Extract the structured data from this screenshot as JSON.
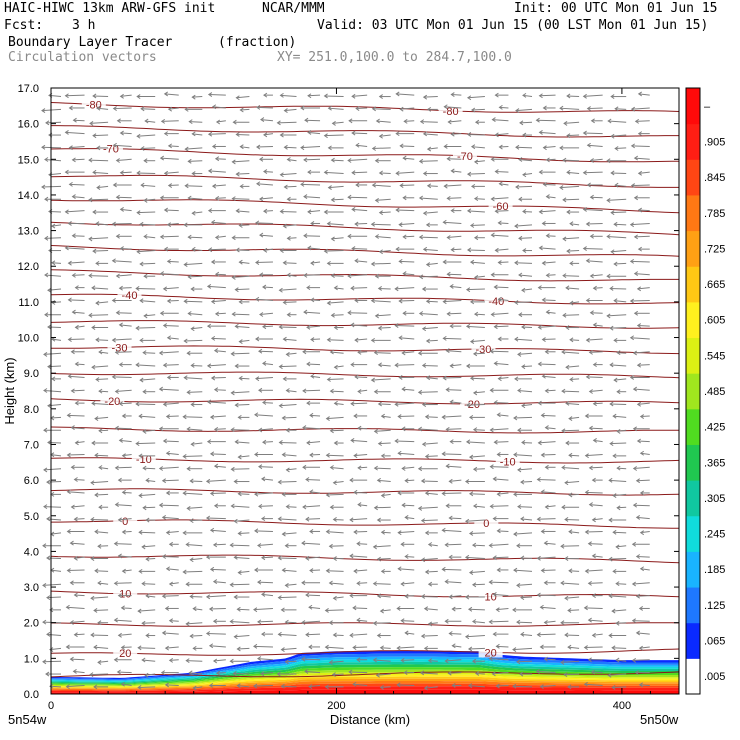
{
  "header": {
    "model": "HAIC-HIWC 13km ARW-GFS init",
    "org": "NCAR/MMM",
    "init": "Init: 00 UTC Mon 01 Jun 15",
    "fcst_label": "Fcst:",
    "fcst_value": "3 h",
    "valid": "Valid: 03 UTC Mon 01 Jun 15 (00 LST Mon 01 Jun 15)",
    "field": "Boundary Layer Tracer",
    "field_units": "(fraction)",
    "vectors": "Circulation vectors",
    "xy": "XY= 251.0,100.0 to 284.7,100.0"
  },
  "chart_data": {
    "type": "cross-section",
    "xlabel": "Distance (km)",
    "ylabel": "Height (km)",
    "xlim": [
      0,
      440
    ],
    "ylim": [
      0,
      17
    ],
    "x_ticks": [
      "0",
      "200",
      "400"
    ],
    "y_ticks": [
      "0.0",
      "1.0",
      "2.0",
      "3.0",
      "4.0",
      "5.0",
      "6.0",
      "7.0",
      "8.0",
      "9.0",
      "10.0",
      "11.0",
      "12.0",
      "13.0",
      "14.0",
      "15.0",
      "16.0",
      "17.0"
    ],
    "left_endpoint": "5n54w",
    "right_endpoint": "5n50w",
    "colorbar": {
      "labels": [
        ".005",
        ".065",
        ".125",
        ".185",
        ".245",
        ".305",
        ".365",
        ".425",
        ".485",
        ".545",
        ".605",
        ".665",
        ".725",
        ".785",
        ".845",
        ".905",
        "–"
      ],
      "colors": [
        "#ffffff",
        "#0a2aff",
        "#1e78ff",
        "#19b4ff",
        "#10dcdc",
        "#10c8a0",
        "#20c850",
        "#50dc20",
        "#a0e61e",
        "#dcf014",
        "#fff01e",
        "#ffc814",
        "#ffa014",
        "#ff7814",
        "#ff4614",
        "#ff1e14",
        "#ff0a0a"
      ]
    },
    "temperature_contours": {
      "color": "#8b1a1a",
      "levels_C": [
        25,
        20,
        15,
        10,
        5,
        0,
        -5,
        -10,
        -15,
        -20,
        -25,
        -30,
        -35,
        -40,
        -45,
        -50,
        -55,
        -60,
        -65,
        -70,
        -75,
        -80
      ],
      "heights_left_km": [
        0.48,
        1.1,
        1.95,
        2.88,
        3.9,
        4.87,
        5.72,
        6.58,
        7.44,
        8.26,
        9.02,
        9.75,
        10.45,
        11.18,
        11.85,
        12.55,
        13.25,
        13.9,
        14.55,
        15.28,
        15.9,
        16.55
      ],
      "heights_right_km": [
        0.62,
        1.22,
        1.95,
        2.72,
        3.72,
        4.7,
        5.62,
        6.52,
        7.35,
        8.15,
        8.9,
        9.6,
        10.3,
        10.96,
        11.58,
        12.25,
        12.9,
        13.55,
        14.25,
        14.94,
        15.62,
        16.3
      ],
      "labels": [
        {
          "text": "20",
          "x_km": 52,
          "level": 20
        },
        {
          "text": "10",
          "x_km": 52,
          "level": 10
        },
        {
          "text": "0",
          "x_km": 52,
          "level": 0
        },
        {
          "text": "-10",
          "x_km": 65,
          "level": -10
        },
        {
          "text": "-20",
          "x_km": 43,
          "level": -20
        },
        {
          "text": "-30",
          "x_km": 48,
          "level": -30
        },
        {
          "text": "-40",
          "x_km": 55,
          "level": -40
        },
        {
          "text": "-70",
          "x_km": 42,
          "level": -70
        },
        {
          "text": "-80",
          "x_km": 30,
          "level": -80
        },
        {
          "text": "20",
          "x_km": 308,
          "level": 20
        },
        {
          "text": "10",
          "x_km": 308,
          "level": 10
        },
        {
          "text": "0",
          "x_km": 305,
          "level": 0
        },
        {
          "text": "-10",
          "x_km": 320,
          "level": -10
        },
        {
          "text": "-20",
          "x_km": 295,
          "level": -20
        },
        {
          "text": "-30",
          "x_km": 303,
          "level": -30
        },
        {
          "text": "-40",
          "x_km": 312,
          "level": -40
        },
        {
          "text": "-60",
          "x_km": 315,
          "level": -60
        },
        {
          "text": "-70",
          "x_km": 290,
          "level": -70
        },
        {
          "text": "-80",
          "x_km": 280,
          "level": -80
        }
      ]
    },
    "boundary_layer_top_km": [
      {
        "x": 0,
        "top": 0.48
      },
      {
        "x": 50,
        "top": 0.45
      },
      {
        "x": 100,
        "top": 0.6
      },
      {
        "x": 140,
        "top": 0.9
      },
      {
        "x": 165,
        "top": 1.0
      },
      {
        "x": 175,
        "top": 1.15
      },
      {
        "x": 200,
        "top": 1.2
      },
      {
        "x": 250,
        "top": 1.22
      },
      {
        "x": 300,
        "top": 1.2
      },
      {
        "x": 315,
        "top": 1.1
      },
      {
        "x": 330,
        "top": 1.05
      },
      {
        "x": 400,
        "top": 0.95
      },
      {
        "x": 440,
        "top": 0.95
      }
    ],
    "vector_field": {
      "color": "#7f7f7f",
      "flow": "mostly westward (easterly winds) throughout column"
    }
  }
}
